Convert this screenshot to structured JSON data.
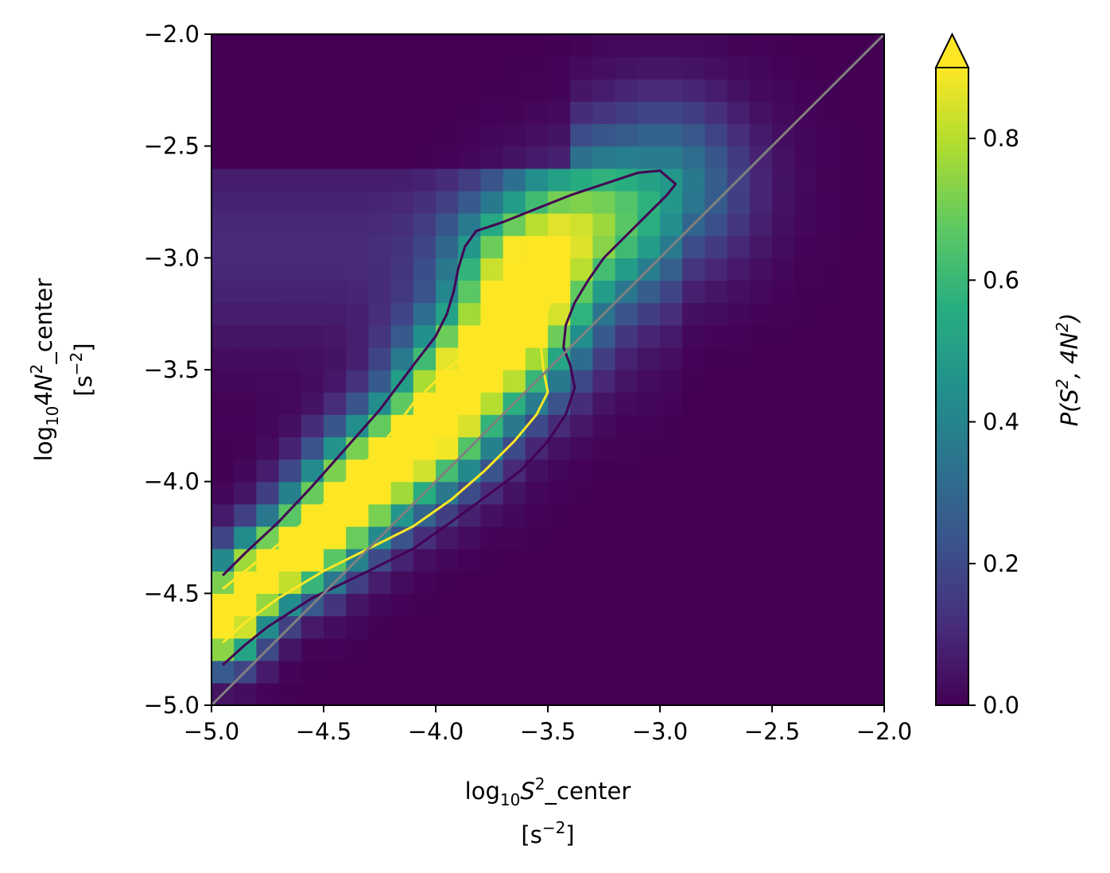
{
  "chart_data": {
    "type": "heatmap",
    "title": "",
    "xlabel": "log10S2_center [s-2]",
    "ylabel": "log10 4N2_center [s-2]",
    "xlim": [
      -5.0,
      -2.0
    ],
    "ylim": [
      -5.0,
      -2.0
    ],
    "x_ticks": [
      "−5.0",
      "−4.5",
      "−4.0",
      "−3.5",
      "−3.0",
      "−2.5",
      "−2.0"
    ],
    "x_tick_values": [
      -5.0,
      -4.5,
      -4.0,
      -3.5,
      -3.0,
      -2.5,
      -2.0
    ],
    "y_ticks": [
      "−5.0",
      "−4.5",
      "−4.0",
      "−3.5",
      "−3.0",
      "−2.5",
      "−2.0"
    ],
    "y_tick_values": [
      -5.0,
      -4.5,
      -4.0,
      -3.5,
      -3.0,
      -2.5,
      -2.0
    ],
    "x_label_text": {
      "prefix": "log",
      "sub": "10",
      "var": "S",
      "sup": "2",
      "suffix": "_center",
      "unit": "[s",
      "unit_sup": "−2",
      "unit_end": "]"
    },
    "y_label_text": {
      "prefix": "log",
      "sub": "10",
      "mid": "4",
      "var": "N",
      "sup": "2",
      "suffix": "_center",
      "unit": "[s",
      "unit_sup": "−2",
      "unit_end": "]"
    },
    "colorbar": {
      "label": "P(S2, 4N2)",
      "label_text": {
        "a": "P(S",
        "sup1": "2",
        "b": ", 4N",
        "sup2": "2",
        "c": ")"
      },
      "range": [
        0.0,
        0.9
      ],
      "ticks": [
        "0.0",
        "0.2",
        "0.4",
        "0.6",
        "0.8"
      ],
      "tick_values": [
        0.0,
        0.2,
        0.4,
        0.6,
        0.8
      ],
      "extend": "max",
      "colormap": "viridis"
    },
    "bins": 30,
    "ridge": {
      "description": "density concentrated along a ridge",
      "points": [
        [
          -4.95,
          -4.65
        ],
        [
          -4.85,
          -4.5
        ],
        [
          -4.75,
          -4.4
        ],
        [
          -4.6,
          -4.3
        ],
        [
          -4.45,
          -4.15
        ],
        [
          -4.3,
          -4.0
        ],
        [
          -4.15,
          -3.88
        ],
        [
          -4.0,
          -3.75
        ],
        [
          -3.9,
          -3.6
        ],
        [
          -3.8,
          -3.48
        ],
        [
          -3.72,
          -3.4
        ],
        [
          -3.65,
          -3.28
        ],
        [
          -3.55,
          -3.05
        ],
        [
          -3.4,
          -2.9
        ],
        [
          -3.2,
          -2.78
        ],
        [
          -3.0,
          -2.68
        ]
      ]
    },
    "series": [
      {
        "type": "contour",
        "color": "#440154",
        "points": [
          [
            -4.95,
            -4.42
          ],
          [
            -4.85,
            -4.32
          ],
          [
            -4.7,
            -4.18
          ],
          [
            -4.55,
            -4.02
          ],
          [
            -4.4,
            -3.85
          ],
          [
            -4.25,
            -3.68
          ],
          [
            -4.1,
            -3.48
          ],
          [
            -4.0,
            -3.35
          ],
          [
            -3.95,
            -3.25
          ],
          [
            -3.92,
            -3.15
          ],
          [
            -3.9,
            -3.05
          ],
          [
            -3.87,
            -2.95
          ],
          [
            -3.82,
            -2.88
          ],
          [
            -3.7,
            -2.84
          ],
          [
            -3.55,
            -2.78
          ],
          [
            -3.4,
            -2.72
          ],
          [
            -3.25,
            -2.67
          ],
          [
            -3.1,
            -2.62
          ],
          [
            -3.0,
            -2.61
          ],
          [
            -2.93,
            -2.67
          ],
          [
            -2.97,
            -2.72
          ],
          [
            -3.05,
            -2.8
          ],
          [
            -3.15,
            -2.9
          ],
          [
            -3.25,
            -3.0
          ],
          [
            -3.32,
            -3.1
          ],
          [
            -3.38,
            -3.2
          ],
          [
            -3.42,
            -3.3
          ],
          [
            -3.43,
            -3.4
          ],
          [
            -3.4,
            -3.48
          ],
          [
            -3.38,
            -3.58
          ],
          [
            -3.42,
            -3.7
          ],
          [
            -3.5,
            -3.82
          ],
          [
            -3.62,
            -3.95
          ],
          [
            -3.78,
            -4.07
          ],
          [
            -3.93,
            -4.18
          ],
          [
            -4.1,
            -4.3
          ],
          [
            -4.3,
            -4.4
          ],
          [
            -4.55,
            -4.52
          ],
          [
            -4.75,
            -4.65
          ],
          [
            -4.85,
            -4.73
          ],
          [
            -4.95,
            -4.82
          ]
        ]
      },
      {
        "type": "contour",
        "color": "#fde725",
        "points": [
          [
            -4.95,
            -4.48
          ],
          [
            -4.85,
            -4.4
          ],
          [
            -4.7,
            -4.28
          ],
          [
            -4.55,
            -4.15
          ],
          [
            -4.4,
            -4.0
          ],
          [
            -4.25,
            -3.85
          ],
          [
            -4.1,
            -3.65
          ],
          [
            -3.95,
            -3.5
          ],
          [
            -3.85,
            -3.41
          ],
          [
            -3.72,
            -3.3
          ],
          [
            -3.6,
            -3.15
          ],
          [
            -3.52,
            -3.11
          ],
          [
            -3.49,
            -3.2
          ],
          [
            -3.52,
            -3.3
          ],
          [
            -3.53,
            -3.4
          ],
          [
            -3.52,
            -3.5
          ],
          [
            -3.5,
            -3.6
          ],
          [
            -3.55,
            -3.7
          ],
          [
            -3.65,
            -3.82
          ],
          [
            -3.78,
            -3.95
          ],
          [
            -3.93,
            -4.08
          ],
          [
            -4.1,
            -4.2
          ],
          [
            -4.3,
            -4.3
          ],
          [
            -4.5,
            -4.4
          ],
          [
            -4.7,
            -4.52
          ],
          [
            -4.85,
            -4.63
          ],
          [
            -4.95,
            -4.72
          ]
        ]
      },
      {
        "type": "line",
        "color": "#808080",
        "points": [
          [
            -5.0,
            -5.0
          ],
          [
            -2.0,
            -2.0
          ]
        ]
      }
    ]
  }
}
